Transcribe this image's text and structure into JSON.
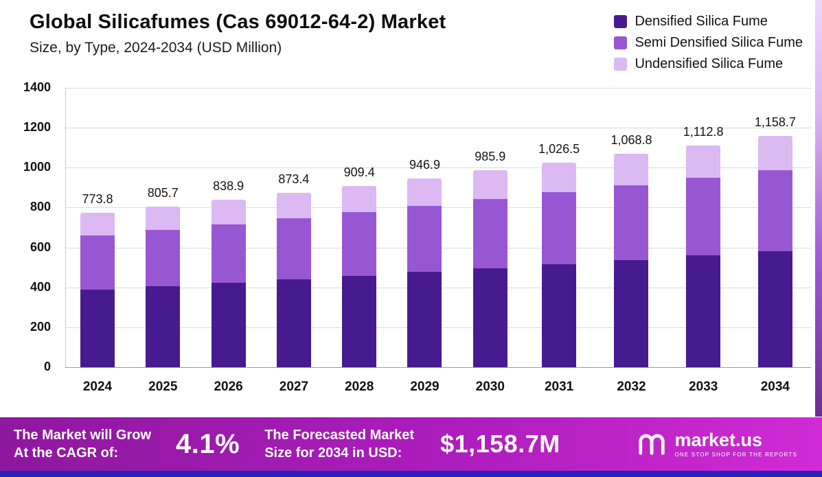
{
  "chart_data": {
    "type": "bar",
    "stacked": true,
    "title": "Global Silicafumes (Cas 69012-64-2) Market",
    "subtitle": "Size, by Type, 2024-2034 (USD Million)",
    "xlabel": "",
    "ylabel": "",
    "ylim": [
      0,
      1400
    ],
    "yticks": [
      0,
      200,
      400,
      600,
      800,
      1000,
      1200,
      1400
    ],
    "grid": true,
    "legend_position": "top-right",
    "categories": [
      "2024",
      "2025",
      "2026",
      "2027",
      "2028",
      "2029",
      "2030",
      "2031",
      "2032",
      "2033",
      "2034"
    ],
    "totals_labels": [
      "773.8",
      "805.7",
      "838.9",
      "873.4",
      "909.4",
      "946.9",
      "985.9",
      "1,026.5",
      "1,068.8",
      "1,112.8",
      "1,158.7"
    ],
    "totals": [
      773.8,
      805.7,
      838.9,
      873.4,
      909.4,
      946.9,
      985.9,
      1026.5,
      1068.8,
      1112.8,
      1158.7
    ],
    "series": [
      {
        "name": "Densified Silica Fume",
        "color": "#481a8f",
        "values": [
          390,
          406,
          423,
          440,
          458,
          477,
          497,
          517,
          538,
          560,
          583
        ]
      },
      {
        "name": "Semi Densified Silica Fume",
        "color": "#9757d3",
        "values": [
          272,
          283,
          294,
          306,
          319,
          332,
          345,
          360,
          374,
          390,
          405
        ]
      },
      {
        "name": "Undensified Silica Fume",
        "color": "#dcb9f2",
        "values": [
          111.8,
          116.7,
          121.9,
          127.4,
          132.4,
          137.9,
          143.9,
          149.5,
          156.8,
          162.8,
          170.7
        ]
      }
    ]
  },
  "footer": {
    "left_line1": "The Market will Grow",
    "left_line2": "At the CAGR of:",
    "cagr": "4.1%",
    "mid_line1": "The Forecasted Market",
    "mid_line2": "Size for 2034 in USD:",
    "forecast": "$1,158.7M",
    "brand": "market.us",
    "tagline": "ONE STOP SHOP FOR THE REPORTS"
  }
}
